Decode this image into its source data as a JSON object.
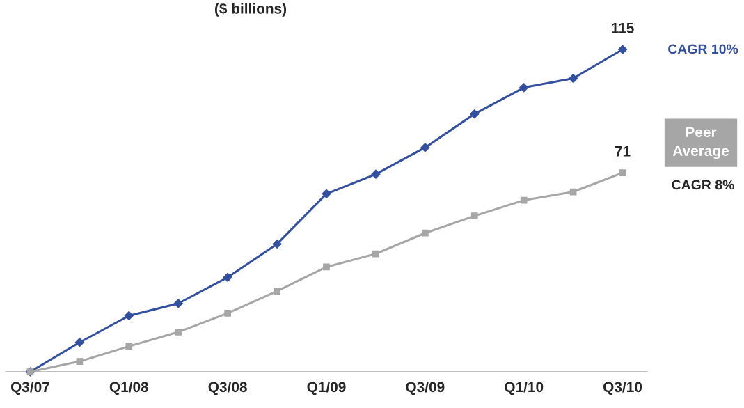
{
  "chart_data": {
    "type": "line",
    "title": "($ billions)",
    "categories": [
      "Q3/07",
      null,
      "Q1/08",
      null,
      "Q3/08",
      null,
      "Q1/09",
      null,
      "Q3/09",
      null,
      "Q1/10",
      null,
      "Q3/10"
    ],
    "series": [
      {
        "color": "#3350a0",
        "marker": "diamond",
        "values": [
          0,
          10.5,
          20,
          24.4,
          33.7,
          45.6,
          63.5,
          70.5,
          80,
          92,
          101.4,
          104.7,
          115
        ],
        "value_labels": [
          null,
          null,
          null,
          null,
          null,
          null,
          null,
          null,
          null,
          null,
          null,
          null,
          "115"
        ]
      },
      {
        "name": "Peer Average",
        "color": "#a6a6a6",
        "marker": "square",
        "values": [
          0,
          3.7,
          9.1,
          14.2,
          20.9,
          28.8,
          37.4,
          42.1,
          49.5,
          55.6,
          61.2,
          64.2,
          71
        ],
        "value_labels": [
          null,
          null,
          null,
          null,
          null,
          null,
          null,
          null,
          null,
          null,
          null,
          null,
          "71"
        ]
      }
    ],
    "annotations": [
      "CAGR 10%",
      "CAGR 8%"
    ],
    "legend": "right",
    "grid": false,
    "line_style": "solid"
  }
}
